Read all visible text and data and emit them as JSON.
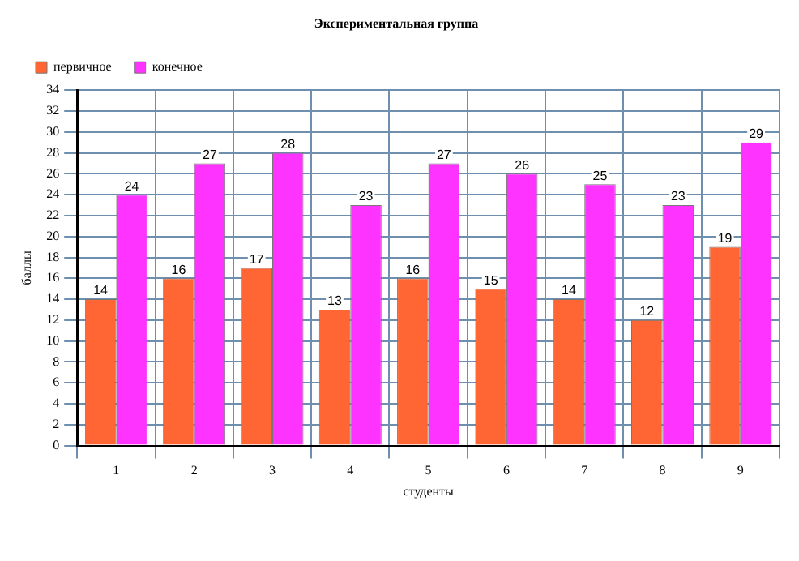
{
  "chart_data": {
    "type": "bar",
    "title": "Экспериментальная группа",
    "xlabel": "студенты",
    "ylabel": "баллы",
    "categories": [
      "1",
      "2",
      "3",
      "4",
      "5",
      "6",
      "7",
      "8",
      "9"
    ],
    "series": [
      {
        "name": "первичное",
        "color": "#ff6633",
        "values": [
          14,
          16,
          17,
          13,
          16,
          15,
          14,
          12,
          19
        ]
      },
      {
        "name": "конечное",
        "color": "#ff33ff",
        "values": [
          24,
          27,
          28,
          23,
          27,
          26,
          25,
          23,
          29
        ]
      }
    ],
    "ylim": [
      0,
      34
    ],
    "yticks": [
      0,
      2,
      4,
      6,
      8,
      10,
      12,
      14,
      16,
      18,
      20,
      22,
      24,
      26,
      28,
      30,
      32,
      34
    ],
    "grid": true,
    "legend": "top left",
    "data_labels": true
  }
}
